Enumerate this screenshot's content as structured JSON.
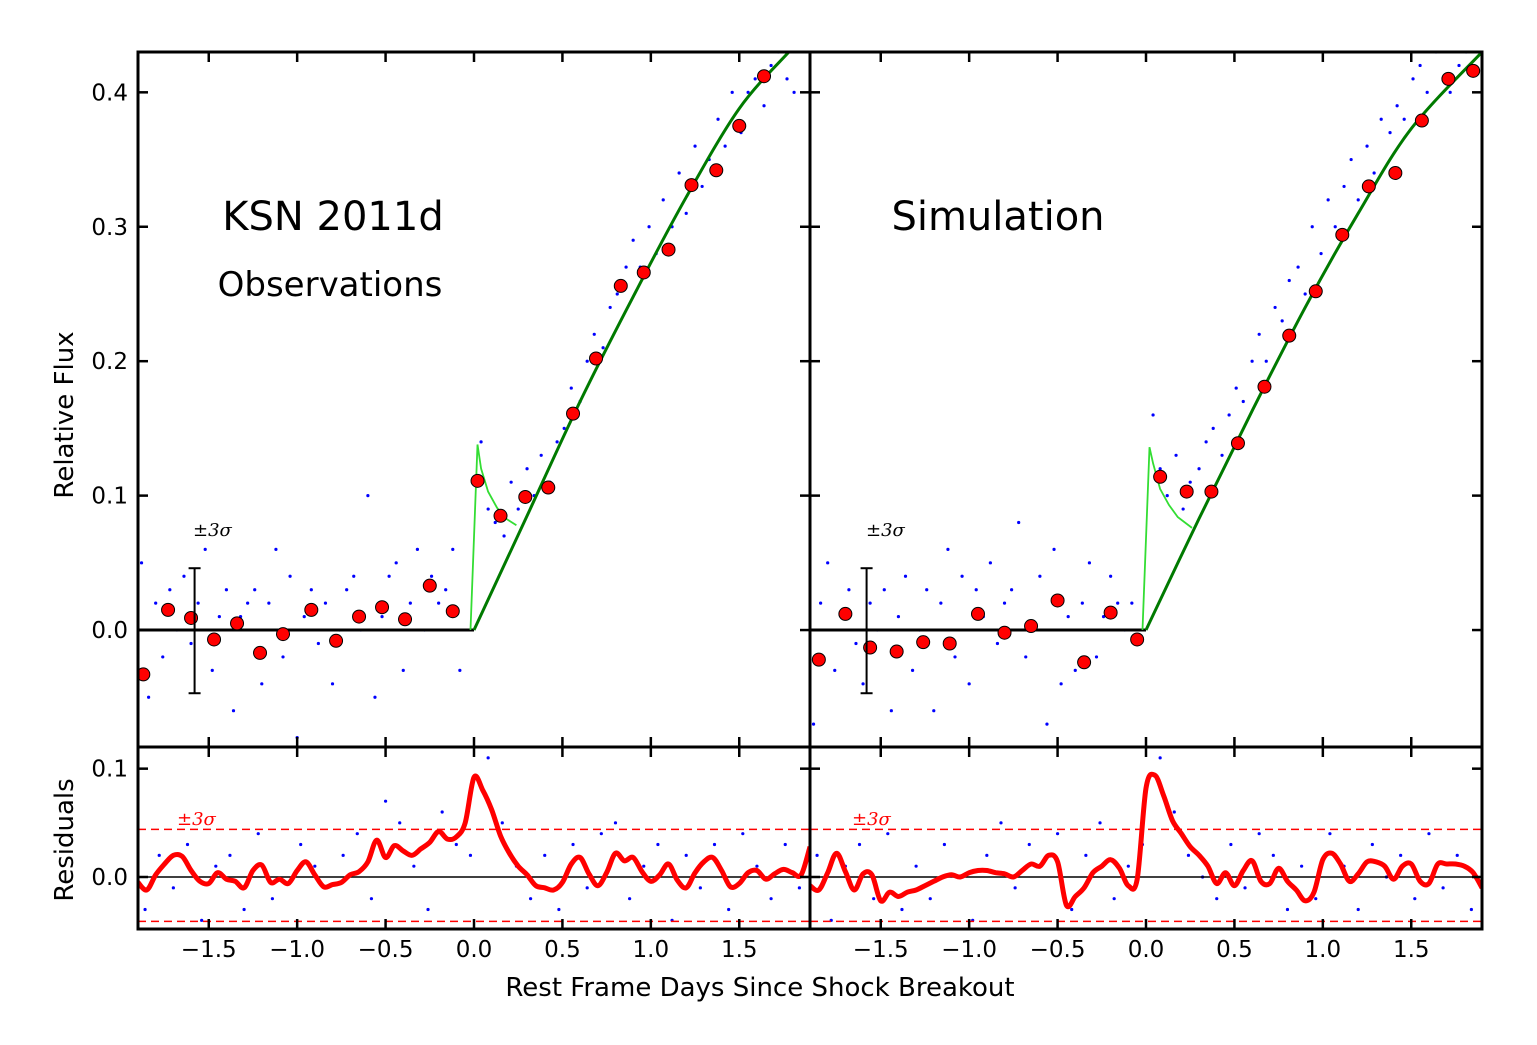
{
  "chart_data": [
    {
      "type": "scatter",
      "panel": "top-left",
      "title": "KSN 2011d",
      "subtitle": "Observations",
      "ylabel": "Relative Flux",
      "xlim": [
        -1.9,
        1.9
      ],
      "ylim": [
        -0.087,
        0.43
      ],
      "yticks": [
        0.0,
        0.1,
        0.2,
        0.3,
        0.4
      ],
      "ytick_labels": [
        "0.0",
        "0.1",
        "0.2",
        "0.3",
        "0.4"
      ],
      "error_bar": {
        "label": "±3σ",
        "x": -1.58,
        "y_low": -0.047,
        "y_high": 0.046
      },
      "binned_points": {
        "x": [
          -1.87,
          -1.73,
          -1.6,
          -1.47,
          -1.34,
          -1.21,
          -1.08,
          -0.92,
          -0.78,
          -0.65,
          -0.52,
          -0.39,
          -0.25,
          -0.12,
          0.02,
          0.15,
          0.29,
          0.42,
          0.56,
          0.69,
          0.83,
          0.96,
          1.1,
          1.23,
          1.37,
          1.5,
          1.64
        ],
        "y": [
          -0.033,
          0.015,
          0.009,
          -0.007,
          0.005,
          -0.017,
          -0.003,
          0.015,
          -0.008,
          0.01,
          0.017,
          0.008,
          0.033,
          0.014,
          0.111,
          0.085,
          0.099,
          0.106,
          0.161,
          0.202,
          0.256,
          0.266,
          0.283,
          0.331,
          0.342,
          0.375,
          0.412
        ]
      },
      "scatter_points": {
        "x": [
          -1.88,
          -1.84,
          -1.8,
          -1.76,
          -1.72,
          -1.68,
          -1.64,
          -1.6,
          -1.56,
          -1.52,
          -1.48,
          -1.44,
          -1.4,
          -1.36,
          -1.32,
          -1.28,
          -1.24,
          -1.2,
          -1.16,
          -1.12,
          -1.08,
          -1.04,
          -1.0,
          -0.96,
          -0.92,
          -0.88,
          -0.84,
          -0.8,
          -0.76,
          -0.72,
          -0.68,
          -0.64,
          -0.6,
          -0.56,
          -0.52,
          -0.48,
          -0.44,
          -0.4,
          -0.36,
          -0.32,
          -0.28,
          -0.24,
          -0.2,
          -0.16,
          -0.12,
          -0.08,
          0.04,
          0.08,
          0.12,
          0.17,
          0.21,
          0.25,
          0.3,
          0.34,
          0.38,
          0.43,
          0.47,
          0.51,
          0.55,
          0.6,
          0.64,
          0.68,
          0.73,
          0.77,
          0.81,
          0.86,
          0.9,
          0.94,
          0.99,
          1.03,
          1.07,
          1.12,
          1.16,
          1.2,
          1.25,
          1.29,
          1.33,
          1.38,
          1.42,
          1.46,
          1.51,
          1.55,
          1.59,
          1.64,
          1.68,
          1.72,
          1.77,
          1.81
        ],
        "y": [
          0.05,
          -0.05,
          0.02,
          -0.02,
          0.03,
          0.0,
          0.04,
          -0.01,
          0.02,
          0.06,
          -0.03,
          0.01,
          0.03,
          -0.06,
          0.01,
          0.02,
          0.03,
          -0.04,
          0.02,
          0.06,
          -0.02,
          0.04,
          -0.08,
          0.01,
          0.03,
          -0.01,
          0.02,
          -0.04,
          0.0,
          0.03,
          0.04,
          0.0,
          0.1,
          -0.05,
          0.01,
          0.04,
          0.05,
          -0.03,
          0.02,
          0.06,
          0.0,
          0.04,
          0.02,
          0.03,
          0.06,
          -0.03,
          0.14,
          0.09,
          0.08,
          0.07,
          0.11,
          0.09,
          0.12,
          0.1,
          0.13,
          0.11,
          0.14,
          0.15,
          0.18,
          0.17,
          0.2,
          0.22,
          0.21,
          0.24,
          0.25,
          0.27,
          0.29,
          0.27,
          0.3,
          0.28,
          0.32,
          0.3,
          0.34,
          0.31,
          0.36,
          0.33,
          0.35,
          0.38,
          0.36,
          0.4,
          0.37,
          0.4,
          0.41,
          0.39,
          0.42,
          0.43,
          0.41,
          0.4
        ]
      },
      "baseline_line": {
        "x": [
          -1.9,
          0.0
        ],
        "y": [
          0.0,
          0.0
        ]
      },
      "model_line": {
        "x": [
          0.0,
          0.3,
          0.6,
          0.9,
          1.2,
          1.5,
          1.78
        ],
        "y": [
          0.0,
          0.085,
          0.17,
          0.248,
          0.322,
          0.388,
          0.43
        ]
      },
      "shock_line": {
        "x": [
          -0.02,
          0.02,
          0.04,
          0.08,
          0.13,
          0.18,
          0.24
        ],
        "y": [
          0.0,
          0.138,
          0.12,
          0.103,
          0.091,
          0.083,
          0.078
        ]
      }
    },
    {
      "type": "scatter",
      "panel": "top-right",
      "title": "Simulation",
      "xlim": [
        -1.9,
        1.9
      ],
      "ylim": [
        -0.087,
        0.43
      ],
      "error_bar": {
        "label": "±3σ",
        "x": -1.58,
        "y_low": -0.047,
        "y_high": 0.046
      },
      "binned_points": {
        "x": [
          -1.85,
          -1.7,
          -1.56,
          -1.41,
          -1.26,
          -1.11,
          -0.95,
          -0.8,
          -0.65,
          -0.5,
          -0.35,
          -0.2,
          -0.05,
          0.08,
          0.23,
          0.37,
          0.52,
          0.67,
          0.81,
          0.96,
          1.11,
          1.26,
          1.41,
          1.56,
          1.71,
          1.85
        ],
        "y": [
          -0.022,
          0.012,
          -0.013,
          -0.016,
          -0.009,
          -0.01,
          0.012,
          -0.002,
          0.003,
          0.022,
          -0.024,
          0.013,
          -0.007,
          0.114,
          0.103,
          0.103,
          0.139,
          0.181,
          0.219,
          0.252,
          0.294,
          0.33,
          0.34,
          0.379,
          0.41,
          0.416
        ]
      },
      "scatter_points": {
        "x": [
          -1.88,
          -1.84,
          -1.8,
          -1.76,
          -1.72,
          -1.68,
          -1.64,
          -1.6,
          -1.56,
          -1.52,
          -1.48,
          -1.44,
          -1.4,
          -1.36,
          -1.32,
          -1.28,
          -1.24,
          -1.2,
          -1.16,
          -1.12,
          -1.08,
          -1.04,
          -1.0,
          -0.96,
          -0.92,
          -0.88,
          -0.84,
          -0.8,
          -0.76,
          -0.72,
          -0.68,
          -0.64,
          -0.6,
          -0.56,
          -0.52,
          -0.48,
          -0.44,
          -0.4,
          -0.36,
          -0.32,
          -0.28,
          -0.24,
          -0.2,
          -0.16,
          -0.12,
          -0.08,
          0.04,
          0.08,
          0.12,
          0.17,
          0.21,
          0.25,
          0.3,
          0.34,
          0.38,
          0.43,
          0.47,
          0.51,
          0.55,
          0.6,
          0.64,
          0.68,
          0.73,
          0.77,
          0.81,
          0.86,
          0.9,
          0.94,
          0.99,
          1.03,
          1.07,
          1.12,
          1.16,
          1.2,
          1.25,
          1.29,
          1.33,
          1.38,
          1.42,
          1.46,
          1.51,
          1.55,
          1.59,
          1.64,
          1.68,
          1.72,
          1.77,
          1.81
        ],
        "y": [
          -0.07,
          0.02,
          0.05,
          -0.03,
          0.01,
          0.03,
          -0.01,
          -0.04,
          0.02,
          0.0,
          0.03,
          -0.06,
          0.01,
          0.04,
          -0.03,
          0.0,
          0.03,
          -0.06,
          0.02,
          0.06,
          -0.02,
          0.04,
          -0.04,
          0.03,
          0.01,
          0.05,
          -0.01,
          0.02,
          0.03,
          0.08,
          -0.02,
          0.0,
          0.04,
          -0.07,
          0.06,
          -0.04,
          0.01,
          -0.03,
          0.02,
          0.05,
          -0.02,
          0.01,
          0.04,
          0.02,
          0.0,
          0.02,
          0.16,
          0.12,
          0.1,
          0.13,
          0.09,
          0.11,
          0.12,
          0.14,
          0.15,
          0.13,
          0.16,
          0.18,
          0.17,
          0.2,
          0.22,
          0.2,
          0.24,
          0.23,
          0.26,
          0.27,
          0.25,
          0.3,
          0.28,
          0.32,
          0.3,
          0.33,
          0.35,
          0.32,
          0.36,
          0.34,
          0.38,
          0.37,
          0.39,
          0.38,
          0.41,
          0.42,
          0.4,
          0.43,
          0.41,
          0.4,
          0.42,
          0.43
        ]
      },
      "baseline_line": {
        "x": [
          -1.9,
          0.0
        ],
        "y": [
          0.0,
          0.0
        ]
      },
      "model_line": {
        "x": [
          0.0,
          0.3,
          0.6,
          0.9,
          1.2,
          1.5,
          1.9
        ],
        "y": [
          0.0,
          0.083,
          0.163,
          0.24,
          0.31,
          0.373,
          0.43
        ]
      },
      "shock_line": {
        "x": [
          -0.02,
          0.02,
          0.04,
          0.08,
          0.13,
          0.18,
          0.26
        ],
        "y": [
          0.0,
          0.136,
          0.124,
          0.105,
          0.093,
          0.084,
          0.076
        ]
      }
    },
    {
      "type": "line",
      "panel": "bottom-left",
      "ylabel": "Residuals",
      "xlim": [
        -1.9,
        1.9
      ],
      "ylim": [
        -0.048,
        0.12
      ],
      "yticks": [
        0.0,
        0.1
      ],
      "ytick_labels": [
        "0.0",
        "0.1"
      ],
      "sigma_label": "±3σ",
      "sigma_levels": [
        0.044,
        -0.041
      ],
      "residual_curve": {
        "x": [
          -1.9,
          -1.85,
          -1.8,
          -1.75,
          -1.7,
          -1.65,
          -1.6,
          -1.55,
          -1.5,
          -1.45,
          -1.4,
          -1.35,
          -1.3,
          -1.25,
          -1.2,
          -1.15,
          -1.1,
          -1.05,
          -1.0,
          -0.95,
          -0.9,
          -0.85,
          -0.8,
          -0.75,
          -0.7,
          -0.65,
          -0.6,
          -0.55,
          -0.5,
          -0.45,
          -0.4,
          -0.35,
          -0.3,
          -0.25,
          -0.2,
          -0.15,
          -0.1,
          -0.05,
          0.0,
          0.05,
          0.1,
          0.15,
          0.2,
          0.25,
          0.3,
          0.35,
          0.4,
          0.45,
          0.5,
          0.55,
          0.6,
          0.65,
          0.7,
          0.75,
          0.8,
          0.85,
          0.9,
          0.95,
          1.0,
          1.05,
          1.1,
          1.15,
          1.2,
          1.25,
          1.3,
          1.35,
          1.4,
          1.45,
          1.5,
          1.55,
          1.6,
          1.65,
          1.7,
          1.75,
          1.8,
          1.85,
          1.9
        ],
        "y": [
          -0.005,
          -0.012,
          0.002,
          0.012,
          0.02,
          0.019,
          0.006,
          -0.004,
          -0.006,
          0.004,
          -0.002,
          -0.004,
          -0.01,
          0.006,
          0.011,
          -0.005,
          -0.002,
          -0.006,
          0.006,
          0.014,
          0.002,
          -0.009,
          -0.007,
          -0.005,
          0.002,
          0.005,
          0.014,
          0.034,
          0.018,
          0.029,
          0.024,
          0.02,
          0.026,
          0.032,
          0.042,
          0.035,
          0.037,
          0.05,
          0.092,
          0.08,
          0.062,
          0.038,
          0.022,
          0.01,
          0.002,
          -0.008,
          -0.01,
          -0.012,
          -0.005,
          0.012,
          0.018,
          0.003,
          -0.008,
          0.004,
          0.022,
          0.015,
          0.018,
          0.005,
          -0.004,
          0.002,
          0.012,
          -0.003,
          -0.01,
          0.004,
          0.014,
          0.018,
          0.006,
          -0.009,
          -0.006,
          0.004,
          0.006,
          -0.002,
          0.003,
          0.007,
          0.004,
          0.002,
          0.028
        ]
      },
      "scatter_points": {
        "x": [
          -1.86,
          -1.78,
          -1.7,
          -1.62,
          -1.54,
          -1.46,
          -1.38,
          -1.3,
          -1.22,
          -1.14,
          -1.06,
          -0.98,
          -0.9,
          -0.82,
          -0.74,
          -0.66,
          -0.58,
          -0.5,
          -0.42,
          -0.34,
          -0.26,
          -0.18,
          -0.1,
          -0.02,
          0.04,
          0.08,
          0.16,
          0.24,
          0.32,
          0.4,
          0.48,
          0.56,
          0.64,
          0.72,
          0.8,
          0.88,
          0.96,
          1.04,
          1.12,
          1.2,
          1.28,
          1.36,
          1.44,
          1.52,
          1.6,
          1.68,
          1.76,
          1.84
        ],
        "y": [
          -0.03,
          0.02,
          -0.01,
          0.03,
          -0.04,
          0.01,
          0.02,
          -0.03,
          0.04,
          -0.02,
          -0.07,
          0.03,
          0.01,
          -0.05,
          0.02,
          0.04,
          -0.02,
          0.07,
          0.05,
          0.01,
          -0.03,
          0.06,
          0.03,
          0.02,
          0.13,
          0.11,
          0.05,
          0.01,
          -0.02,
          0.02,
          -0.03,
          0.03,
          -0.01,
          0.04,
          0.05,
          -0.02,
          0.01,
          0.03,
          -0.04,
          0.02,
          -0.01,
          0.03,
          -0.03,
          0.04,
          0.01,
          -0.02,
          0.03,
          -0.01
        ]
      }
    },
    {
      "type": "line",
      "panel": "bottom-right",
      "xlim": [
        -1.9,
        1.9
      ],
      "ylim": [
        -0.048,
        0.12
      ],
      "sigma_label": "±3σ",
      "sigma_levels": [
        0.044,
        -0.041
      ],
      "xticks": [
        -1.5,
        -1.0,
        -0.5,
        0.0,
        0.5,
        1.0,
        1.5
      ],
      "xtick_labels": [
        "−1.5",
        "−1.0",
        "−0.5",
        "0.0",
        "0.5",
        "1.0",
        "1.5"
      ],
      "residual_curve": {
        "x": [
          -1.9,
          -1.85,
          -1.8,
          -1.75,
          -1.7,
          -1.65,
          -1.6,
          -1.55,
          -1.5,
          -1.45,
          -1.4,
          -1.35,
          -1.3,
          -1.25,
          -1.2,
          -1.15,
          -1.1,
          -1.05,
          -1.0,
          -0.95,
          -0.9,
          -0.85,
          -0.8,
          -0.75,
          -0.7,
          -0.65,
          -0.6,
          -0.55,
          -0.5,
          -0.45,
          -0.4,
          -0.35,
          -0.3,
          -0.25,
          -0.2,
          -0.15,
          -0.1,
          -0.05,
          0.0,
          0.05,
          0.1,
          0.15,
          0.2,
          0.25,
          0.3,
          0.35,
          0.4,
          0.45,
          0.5,
          0.55,
          0.6,
          0.65,
          0.7,
          0.75,
          0.8,
          0.85,
          0.9,
          0.95,
          1.0,
          1.05,
          1.1,
          1.15,
          1.2,
          1.25,
          1.3,
          1.35,
          1.4,
          1.45,
          1.5,
          1.55,
          1.6,
          1.65,
          1.7,
          1.75,
          1.8,
          1.85,
          1.9
        ],
        "y": [
          -0.008,
          -0.012,
          0.004,
          0.022,
          0.005,
          -0.012,
          0.003,
          0.002,
          -0.022,
          -0.014,
          -0.018,
          -0.014,
          -0.012,
          -0.008,
          -0.004,
          0.0,
          0.002,
          0.0,
          0.004,
          0.006,
          0.006,
          0.004,
          0.003,
          0.0,
          0.006,
          0.012,
          0.01,
          0.02,
          0.014,
          -0.026,
          -0.018,
          -0.01,
          0.004,
          0.01,
          0.016,
          0.008,
          -0.008,
          -0.002,
          0.082,
          0.094,
          0.075,
          0.052,
          0.04,
          0.028,
          0.02,
          0.01,
          -0.006,
          0.004,
          -0.008,
          0.006,
          0.015,
          -0.004,
          -0.006,
          0.008,
          -0.004,
          -0.012,
          -0.022,
          -0.014,
          0.016,
          0.022,
          0.012,
          -0.004,
          0.003,
          0.014,
          0.014,
          0.01,
          -0.002,
          0.01,
          0.012,
          -0.004,
          -0.006,
          0.012,
          0.012,
          0.012,
          0.01,
          0.004,
          -0.01
        ]
      },
      "scatter_points": {
        "x": [
          -1.86,
          -1.78,
          -1.7,
          -1.62,
          -1.54,
          -1.46,
          -1.38,
          -1.3,
          -1.22,
          -1.14,
          -1.06,
          -0.98,
          -0.9,
          -0.82,
          -0.74,
          -0.66,
          -0.58,
          -0.5,
          -0.42,
          -0.34,
          -0.26,
          -0.18,
          -0.1,
          -0.02,
          0.04,
          0.08,
          0.16,
          0.24,
          0.32,
          0.4,
          0.48,
          0.56,
          0.64,
          0.72,
          0.8,
          0.88,
          0.96,
          1.04,
          1.12,
          1.2,
          1.28,
          1.36,
          1.44,
          1.52,
          1.6,
          1.68,
          1.76,
          1.84
        ],
        "y": [
          0.02,
          -0.04,
          0.01,
          0.03,
          -0.02,
          0.04,
          -0.03,
          0.01,
          -0.02,
          0.03,
          0.0,
          -0.04,
          0.02,
          0.05,
          -0.01,
          0.03,
          -0.06,
          0.04,
          -0.03,
          0.02,
          0.05,
          -0.02,
          0.01,
          0.03,
          0.13,
          0.11,
          0.06,
          0.02,
          0.0,
          -0.02,
          0.03,
          -0.01,
          0.04,
          0.02,
          -0.03,
          0.01,
          -0.02,
          0.04,
          0.01,
          -0.03,
          0.03,
          0.0,
          0.02,
          -0.02,
          0.04,
          -0.01,
          0.02,
          -0.03
        ]
      }
    }
  ],
  "xlabel": "Rest Frame Days Since Shock Breakout",
  "colors": {
    "binned": "#ff0000",
    "scatter": "#0000ff",
    "model": "#007a00",
    "shock": "#33dd33",
    "residual": "#ff0000",
    "sigma": "#ff0000",
    "axes": "#000000"
  }
}
